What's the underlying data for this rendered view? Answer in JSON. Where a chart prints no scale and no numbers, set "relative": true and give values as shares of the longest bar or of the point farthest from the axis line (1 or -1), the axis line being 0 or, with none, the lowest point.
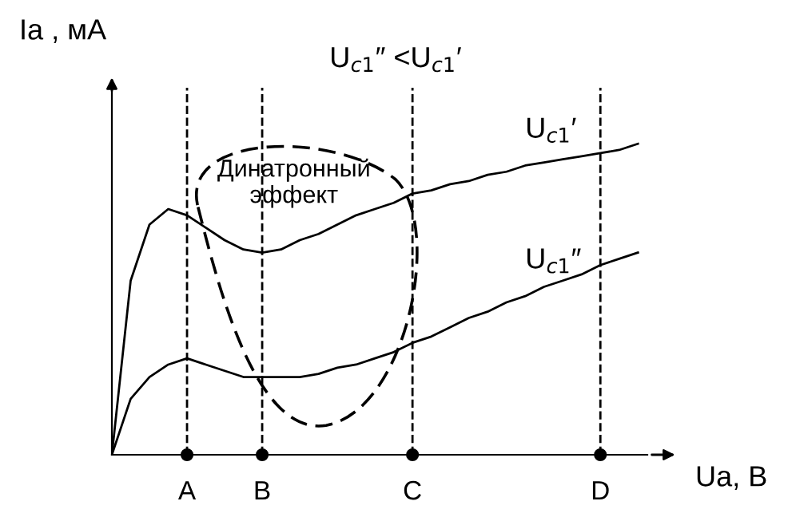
{
  "chart_data": {
    "type": "line",
    "relative": true,
    "xlabel": "Uа, В",
    "ylabel": "Iа , мА",
    "categories": [
      null,
      null,
      null,
      null,
      "A",
      null,
      null,
      null,
      "B",
      null,
      null,
      null,
      null,
      null,
      null,
      null,
      "C",
      null,
      null,
      null,
      null,
      null,
      null,
      null,
      null,
      null,
      "D",
      null,
      null
    ],
    "series": [
      {
        "name": "U$_{c1}$′",
        "color": "#000000",
        "values": [
          0,
          0.56,
          0.74,
          0.79,
          0.77,
          0.73,
          0.69,
          0.66,
          0.65,
          0.66,
          0.69,
          0.71,
          0.74,
          0.77,
          0.79,
          0.81,
          0.84,
          0.85,
          0.87,
          0.88,
          0.9,
          0.91,
          0.93,
          0.94,
          0.95,
          0.96,
          0.97,
          0.98,
          1.0
        ]
      },
      {
        "name": "U$_{c1}$″",
        "color": "#000000",
        "values": [
          0,
          0.18,
          0.25,
          0.29,
          0.31,
          0.29,
          0.27,
          0.25,
          0.25,
          0.25,
          0.25,
          0.26,
          0.28,
          0.29,
          0.31,
          0.33,
          0.36,
          0.38,
          0.41,
          0.44,
          0.46,
          0.49,
          0.51,
          0.54,
          0.56,
          0.58,
          0.61,
          0.63,
          0.65
        ]
      }
    ],
    "ref_lines": [
      {
        "axis": "x",
        "value": "A",
        "line_style": "dashed",
        "color": "#000000"
      },
      {
        "axis": "x",
        "value": "B",
        "line_style": "dashed",
        "color": "#000000"
      },
      {
        "axis": "x",
        "value": "C",
        "line_style": "dashed",
        "color": "#000000"
      },
      {
        "axis": "x",
        "value": "D",
        "line_style": "dashed",
        "color": "#000000"
      }
    ],
    "annotations": [
      "Динатронный\nэффект",
      "U$_{c1}$″ <U$_{c1}$′"
    ],
    "marker": "none",
    "line_style": "solid",
    "grid": false,
    "legend": false
  }
}
